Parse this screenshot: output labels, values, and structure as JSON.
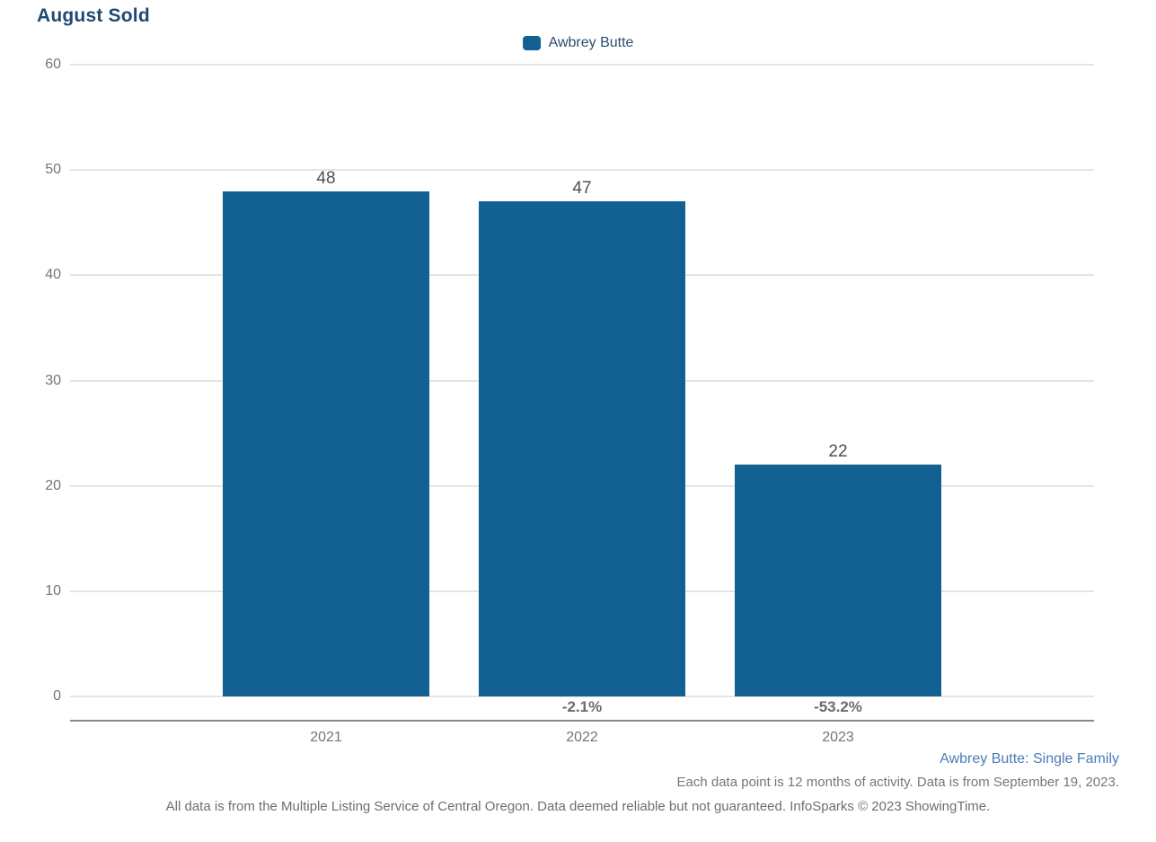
{
  "page": {
    "title": "August Sold"
  },
  "legend": {
    "label": "Awbrey Butte"
  },
  "chart_data": {
    "type": "bar",
    "title": "August Sold",
    "categories": [
      "2021",
      "2022",
      "2023"
    ],
    "series": [
      {
        "name": "Awbrey Butte",
        "values": [
          48,
          47,
          22
        ]
      }
    ],
    "value_labels": [
      "48",
      "47",
      "22"
    ],
    "pct_change_labels": [
      "",
      "-2.1%",
      "-53.2%"
    ],
    "yticks": [
      0,
      10,
      20,
      30,
      40,
      50,
      60
    ],
    "ylim": [
      0,
      60
    ],
    "grid": true,
    "legend_position": "top-center",
    "xlabel": "",
    "ylabel": ""
  },
  "footer": {
    "series_note": "Awbrey Butte: Single Family",
    "data_note": "Each data point is 12 months of activity. Data is from September 19, 2023.",
    "disclaimer": "All data is from the Multiple Listing Service of Central Oregon. Data deemed reliable but not guaranteed. InfoSparks © 2023 ShowingTime."
  },
  "colors": {
    "bar": "#126192",
    "title": "#1F4973",
    "legend_text": "#2D4D6E",
    "footer_link": "#4A7CB5",
    "axis_text": "#757575",
    "value_label": "#4F4F4F",
    "pct_label": "#6B6B6B",
    "gridline": "#E4E4E4",
    "axis_line": "#8A8A8A"
  }
}
